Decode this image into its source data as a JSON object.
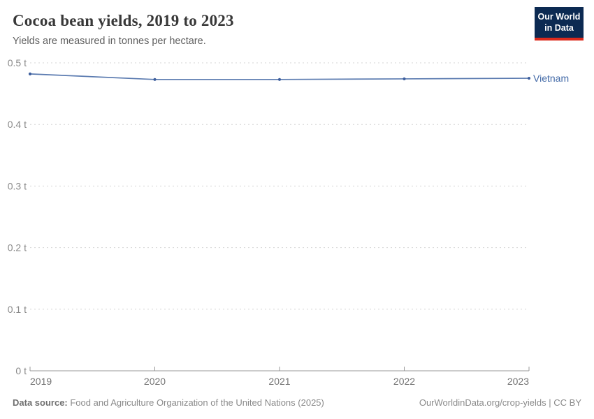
{
  "header": {
    "title": "Cocoa bean yields, 2019 to 2023",
    "subtitle": "Yields are measured in tonnes per hectare."
  },
  "logo": {
    "line1": "Our World",
    "line2": "in Data",
    "bg_color": "#0c2a52",
    "accent_color": "#dc2a1c"
  },
  "chart_data": {
    "type": "line",
    "title": "Cocoa bean yields, 2019 to 2023",
    "x": [
      2019,
      2020,
      2021,
      2022,
      2023
    ],
    "series": [
      {
        "name": "Vietnam",
        "values": [
          0.482,
          0.473,
          0.473,
          0.474,
          0.475
        ],
        "line_color": "#5b7bb0",
        "marker_color": "#3d5e9d",
        "label_color": "#4269a7"
      }
    ],
    "xlabel": "",
    "ylabel": "",
    "unit": "t",
    "ylim": [
      0,
      0.5
    ],
    "yticks": [
      {
        "value": 0,
        "label": "0 t"
      },
      {
        "value": 0.1,
        "label": "0.1 t"
      },
      {
        "value": 0.2,
        "label": "0.2 t"
      },
      {
        "value": 0.3,
        "label": "0.3 t"
      },
      {
        "value": 0.4,
        "label": "0.4 t"
      },
      {
        "value": 0.5,
        "label": "0.5 t"
      }
    ],
    "xtick_labels": [
      "2019",
      "2020",
      "2021",
      "2022",
      "2023"
    ],
    "grid": "horizontal-dashed",
    "legend_position": "end-of-line",
    "grid_color": "#d4d4d4",
    "axis_color": "#999999",
    "tick_label_color": "#8a8a8a"
  },
  "footer": {
    "source_label": "Data source:",
    "source_value": " Food and Agriculture Organization of the United Nations (2025)",
    "link": "OurWorldinData.org/crop-yields | CC BY"
  }
}
